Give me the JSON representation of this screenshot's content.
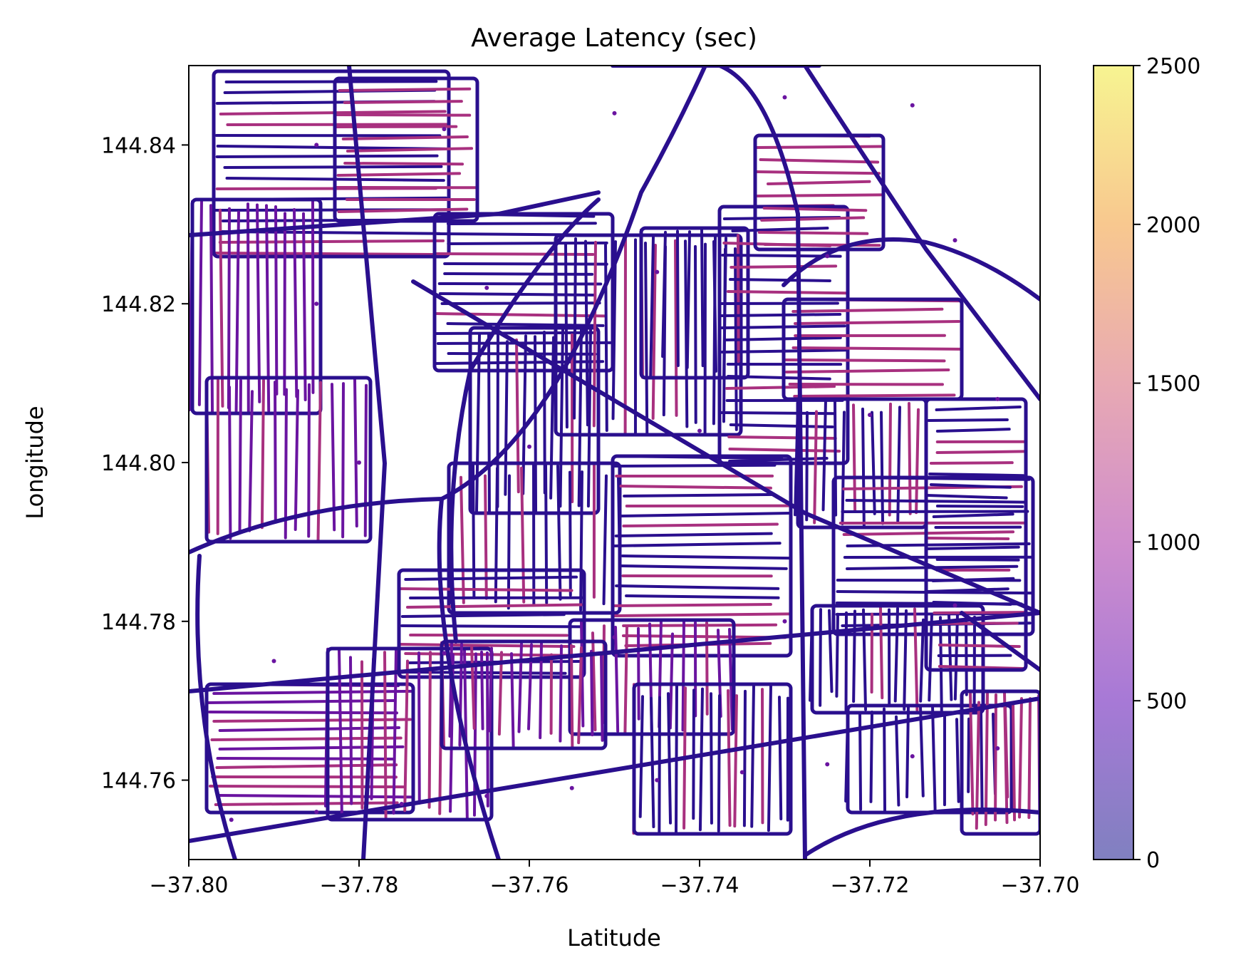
{
  "chart_data": {
    "type": "scatter",
    "title": "Average Latency (sec)",
    "xlabel": "Latitude",
    "ylabel": "Longitude",
    "xlim": [
      -37.8,
      -37.7
    ],
    "ylim": [
      144.75,
      144.85
    ],
    "xticks": [
      -37.8,
      -37.78,
      -37.76,
      -37.74,
      -37.72,
      -37.7
    ],
    "xtick_labels": [
      "−37.80",
      "−37.78",
      "−37.76",
      "−37.74",
      "−37.72",
      "−37.70"
    ],
    "yticks": [
      144.76,
      144.78,
      144.8,
      144.82,
      144.84
    ],
    "ytick_labels": [
      "144.76",
      "144.78",
      "144.80",
      "144.82",
      "144.84"
    ],
    "colorbar": {
      "colormap": "plasma",
      "alpha": 0.5,
      "range": [
        0,
        2500
      ],
      "ticks": [
        0,
        500,
        1000,
        1500,
        2000,
        2500
      ],
      "tick_labels": [
        "0",
        "500",
        "1000",
        "1500",
        "2000",
        "2500"
      ],
      "colors": [
        "#8080c0",
        "#a779d6",
        "#cf8dcd",
        "#e8a9b3",
        "#f8c88f",
        "#f7f491"
      ]
    },
    "grid": false,
    "point_color_low": "#2a0f8e",
    "point_color_mid": "#6a14a0",
    "point_color_high": "#a8307f",
    "series": [
      {
        "values": [
          [
            -37.795,
            144.755
          ],
          [
            -37.785,
            144.756
          ],
          [
            -37.775,
            144.757
          ],
          [
            -37.765,
            144.758
          ],
          [
            -37.755,
            144.759
          ],
          [
            -37.745,
            144.76
          ],
          [
            -37.735,
            144.761
          ],
          [
            -37.725,
            144.762
          ],
          [
            -37.715,
            144.763
          ],
          [
            -37.705,
            144.764
          ],
          [
            -37.79,
            144.775
          ],
          [
            -37.77,
            144.776
          ],
          [
            -37.75,
            144.778
          ],
          [
            -37.73,
            144.78
          ],
          [
            -37.71,
            144.782
          ],
          [
            -37.78,
            144.8
          ],
          [
            -37.76,
            144.802
          ],
          [
            -37.74,
            144.804
          ],
          [
            -37.72,
            144.806
          ],
          [
            -37.705,
            144.808
          ],
          [
            -37.785,
            144.82
          ],
          [
            -37.765,
            144.822
          ],
          [
            -37.745,
            144.824
          ],
          [
            -37.725,
            144.826
          ],
          [
            -37.71,
            144.828
          ],
          [
            -37.785,
            144.84
          ],
          [
            -37.77,
            144.842
          ],
          [
            -37.75,
            144.844
          ],
          [
            -37.73,
            144.846
          ],
          [
            -37.715,
            144.845
          ]
        ]
      }
    ]
  }
}
